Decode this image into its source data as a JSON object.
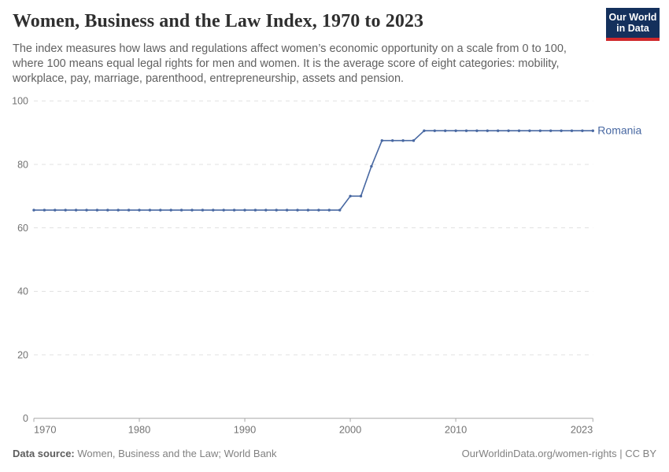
{
  "header": {
    "title": "Women, Business and the Law Index, 1970 to 2023",
    "subtitle": "The index measures how laws and regulations affect women’s economic opportunity on a scale from 0 to 100, where 100 means equal legal rights for men and women. It is the average score of eight categories: mobility, workplace, pay, marriage, parenthood, entrepreneurship, assets and pension.",
    "logo": {
      "line1": "Our World",
      "line2": "in Data",
      "bg_color": "#14305c",
      "accent_color": "#d0282b"
    }
  },
  "chart_data": {
    "type": "line",
    "title": "Women, Business and the Law Index, 1970 to 2023",
    "xlabel": "",
    "ylabel": "",
    "xlim": [
      1970,
      2023
    ],
    "ylim": [
      0,
      100
    ],
    "y_ticks": [
      0,
      20,
      40,
      60,
      80,
      100
    ],
    "x_ticks": [
      1970,
      1980,
      1990,
      2000,
      2010,
      2023
    ],
    "grid": "horizontal-dashed",
    "legend_position": "end-of-line-label",
    "series": [
      {
        "name": "Romania",
        "color": "#4868a2",
        "start_year": 1970,
        "years": [
          1970,
          1971,
          1972,
          1973,
          1974,
          1975,
          1976,
          1977,
          1978,
          1979,
          1980,
          1981,
          1982,
          1983,
          1984,
          1985,
          1986,
          1987,
          1988,
          1989,
          1990,
          1991,
          1992,
          1993,
          1994,
          1995,
          1996,
          1997,
          1998,
          1999,
          2000,
          2001,
          2002,
          2003,
          2004,
          2005,
          2006,
          2007,
          2008,
          2009,
          2010,
          2011,
          2012,
          2013,
          2014,
          2015,
          2016,
          2017,
          2018,
          2019,
          2020,
          2021,
          2022,
          2023
        ],
        "values": [
          65.6,
          65.6,
          65.6,
          65.6,
          65.6,
          65.6,
          65.6,
          65.6,
          65.6,
          65.6,
          65.6,
          65.6,
          65.6,
          65.6,
          65.6,
          65.6,
          65.6,
          65.6,
          65.6,
          65.6,
          65.6,
          65.6,
          65.6,
          65.6,
          65.6,
          65.6,
          65.6,
          65.6,
          65.6,
          65.6,
          70,
          70,
          79.4,
          87.5,
          87.5,
          87.5,
          87.5,
          90.6,
          90.6,
          90.6,
          90.6,
          90.6,
          90.6,
          90.6,
          90.6,
          90.6,
          90.6,
          90.6,
          90.6,
          90.6,
          90.6,
          90.6,
          90.6,
          90.6
        ]
      }
    ],
    "colors": {
      "gridline": "#e1e1e1",
      "axis": "#a8a8a8",
      "tick_label": "#737373"
    }
  },
  "footer": {
    "datasource_label": "Data source:",
    "datasource_value": "Women, Business and the Law; World Bank",
    "link": "OurWorldinData.org/women-rights | CC BY"
  }
}
